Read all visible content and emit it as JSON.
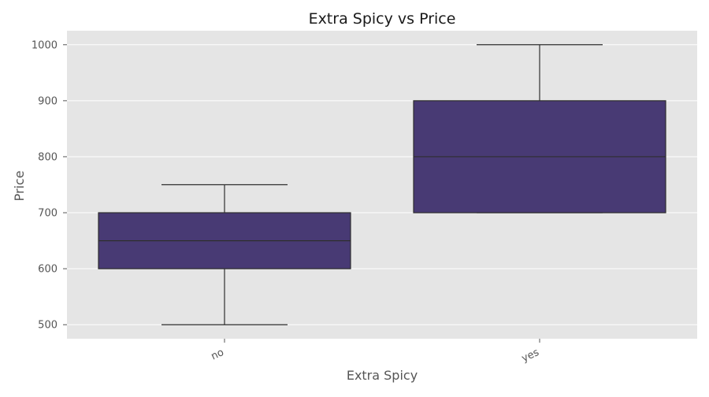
{
  "chart_data": {
    "type": "box",
    "title": "Extra Spicy vs Price",
    "xlabel": "Extra Spicy",
    "ylabel": "Price",
    "categories": [
      "no",
      "yes"
    ],
    "boxes": [
      {
        "category": "no",
        "whisker_low": 500,
        "q1": 600,
        "median": 650,
        "q3": 700,
        "whisker_high": 750
      },
      {
        "category": "yes",
        "whisker_low": 700,
        "q1": 700,
        "median": 800,
        "q3": 900,
        "whisker_high": 1000
      }
    ],
    "yticks": [
      500,
      600,
      700,
      800,
      900,
      1000
    ],
    "ylim": [
      475,
      1025
    ],
    "grid": true,
    "colors": {
      "box_fill": "#483a74",
      "box_edge": "#2e2e2e",
      "plot_bg": "#e5e5e5",
      "grid": "#ffffff",
      "text": "#555555",
      "title": "#1a1a1a"
    }
  }
}
